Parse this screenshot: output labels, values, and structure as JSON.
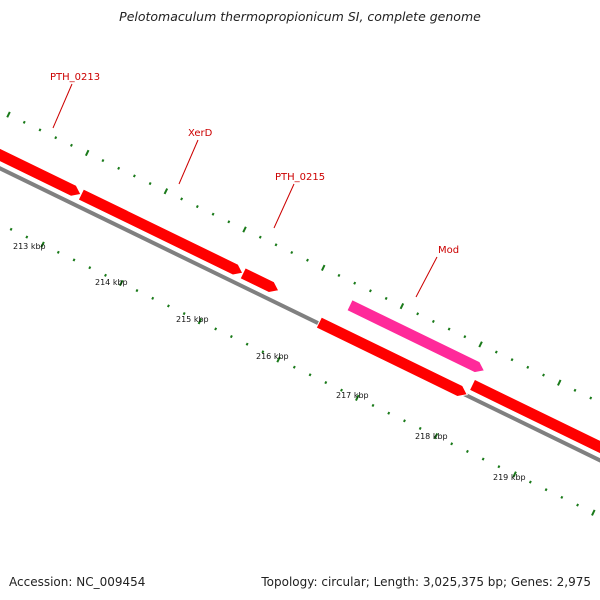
{
  "title": "Pelotomaculum thermopropionicum SI, complete genome",
  "footer": {
    "accession": "Accession: NC_009454",
    "topology": "Topology: circular; Length: 3,025,375 bp; Genes: 2,975"
  },
  "colors": {
    "gene": "#ff0000",
    "gene_highlight": "#ff2a9a",
    "backbone": "#808080",
    "ticks": "#1a7a1a",
    "labels": "#cc0000"
  },
  "genes": [
    {
      "id": "PTH_0213",
      "label": "PTH_0213",
      "strand": "forward",
      "color": "gene"
    },
    {
      "id": "XerD",
      "label": "XerD",
      "strand": "forward",
      "color": "gene"
    },
    {
      "id": "PTH_0215",
      "label": "PTH_0215",
      "strand": "forward",
      "color": "gene"
    },
    {
      "id": "Mod",
      "label": "Mod",
      "strand": "forward",
      "color": "gene_highlight"
    }
  ],
  "ticks": [
    "213 kbp",
    "214 kbp",
    "215 kbp",
    "216 kbp",
    "217 kbp",
    "218 kbp",
    "219 kbp"
  ]
}
